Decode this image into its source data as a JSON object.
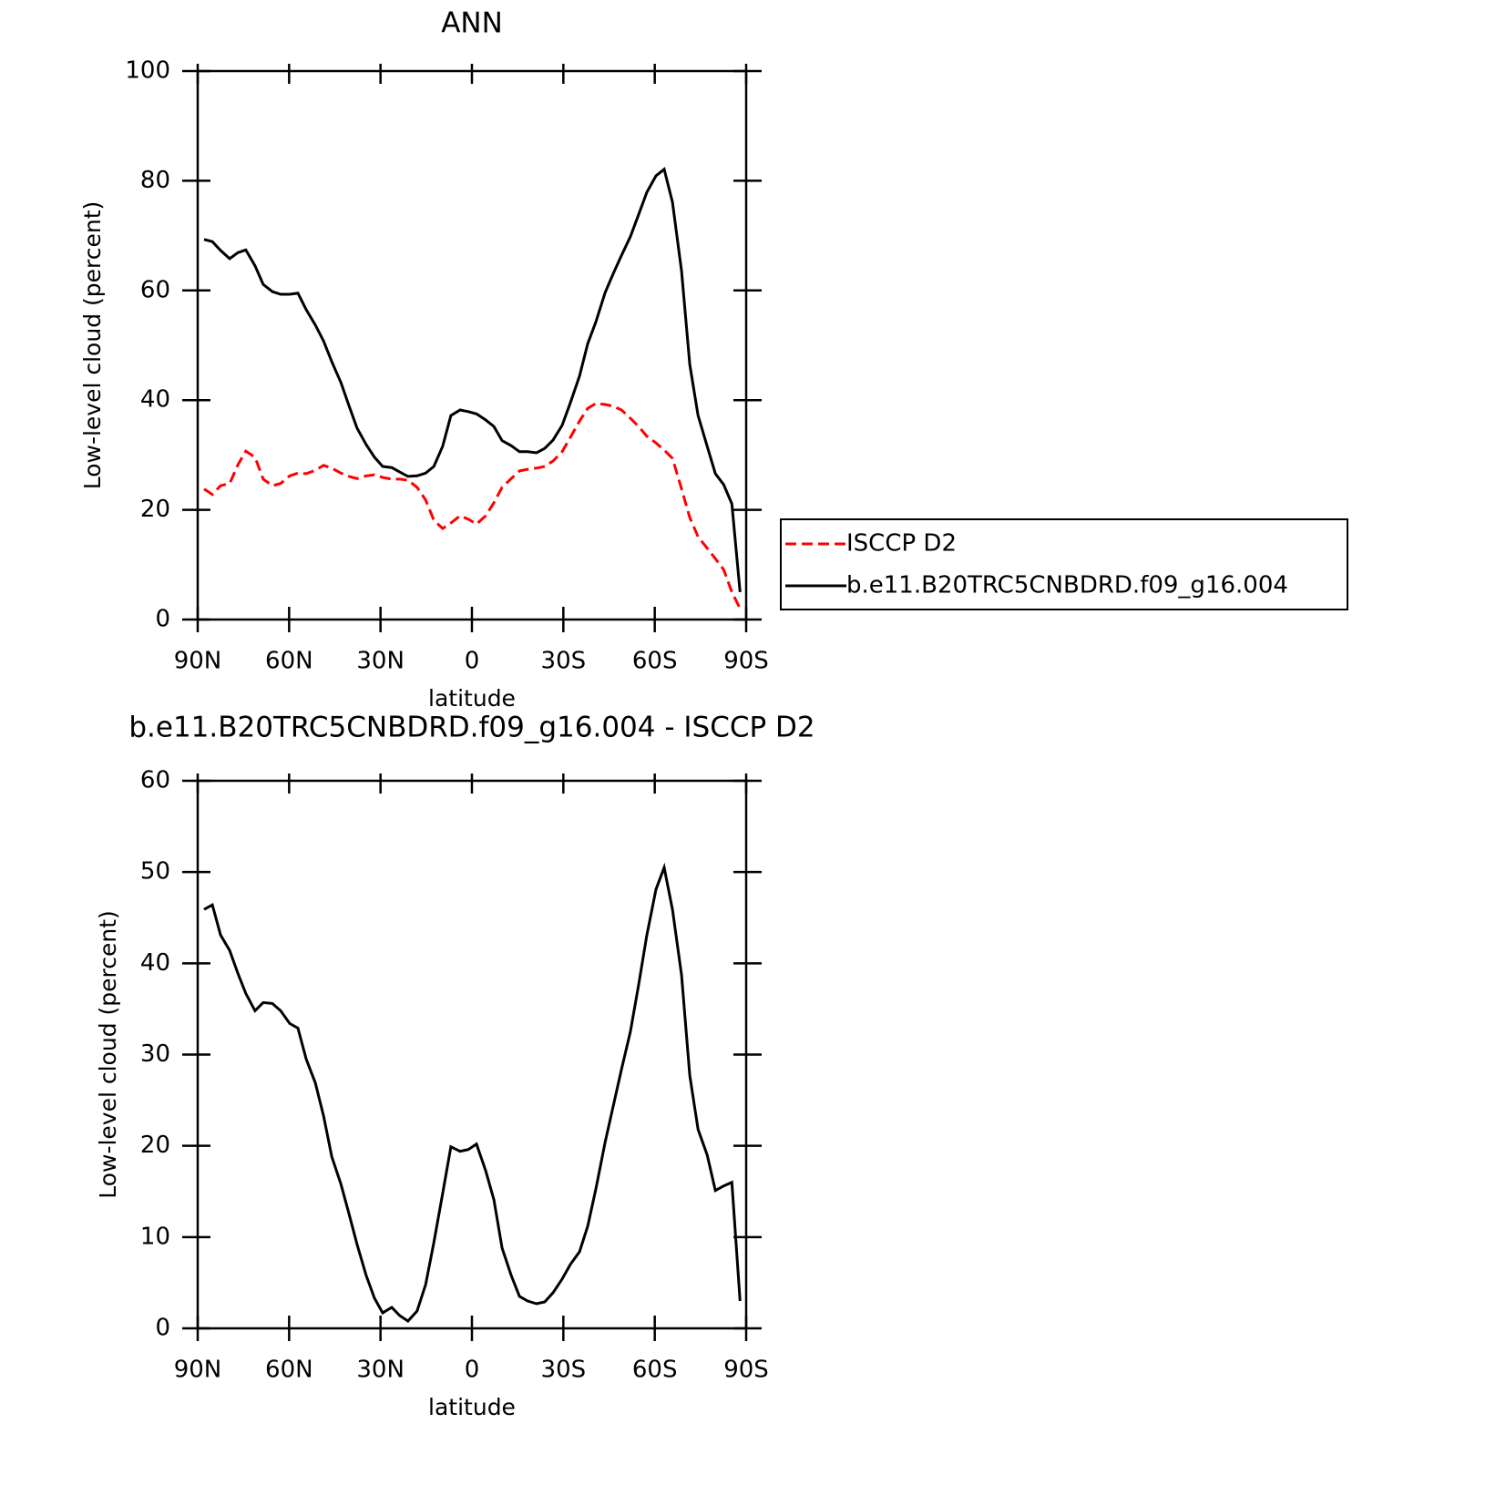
{
  "chart_data": [
    {
      "type": "line",
      "title": "ANN",
      "xlabel": "latitude",
      "ylabel": "Low-level cloud (percent)",
      "x": [
        87.9,
        85.2,
        82.5,
        79.5,
        76.8,
        74.2,
        71.2,
        68.5,
        65.5,
        62.8,
        59.8,
        57.1,
        54.4,
        51.4,
        48.7,
        46.0,
        43.0,
        40.3,
        37.7,
        34.7,
        32.0,
        29.3,
        26.3,
        23.7,
        21.0,
        18.0,
        15.2,
        12.5,
        9.6,
        6.9,
        3.9,
        1.2,
        -1.5,
        -4.5,
        -7.2,
        -9.9,
        -12.9,
        -15.6,
        -18.3,
        -21.2,
        -23.9,
        -26.6,
        -29.6,
        -32.3,
        -35.3,
        -38.0,
        -40.7,
        -43.7,
        -46.4,
        -49.1,
        -52.0,
        -54.7,
        -57.4,
        -60.4,
        -63.1,
        -65.8,
        -68.8,
        -71.5,
        -74.2,
        -77.2,
        -79.9,
        -82.6,
        -85.3,
        -88.0
      ],
      "series": [
        {
          "name": "ISCCP D2",
          "color": "#ff0000",
          "dashed": true,
          "values": [
            23.8,
            22.8,
            24.4,
            24.8,
            28.2,
            30.7,
            29.6,
            25.6,
            24.4,
            24.8,
            26.2,
            26.7,
            26.6,
            27.2,
            28.1,
            27.6,
            26.7,
            26.1,
            25.7,
            26.2,
            26.4,
            25.9,
            25.6,
            25.6,
            25.4,
            24.1,
            21.8,
            18.1,
            16.6,
            17.6,
            18.9,
            18.3,
            17.4,
            18.9,
            21.3,
            24.1,
            25.7,
            27.1,
            27.4,
            27.6,
            27.9,
            28.9,
            30.6,
            33.2,
            36.2,
            38.5,
            39.4,
            39.2,
            38.9,
            38.2,
            36.7,
            35.2,
            33.4,
            32.2,
            30.9,
            29.4,
            23.8,
            18.6,
            15.1,
            13.0,
            11.1,
            9.1,
            5.0,
            2.0
          ]
        },
        {
          "name": "b.e11.B20TRC5CNBDRD.f09_g16.004",
          "color": "#000000",
          "dashed": false,
          "values": [
            69.3,
            68.9,
            67.3,
            65.8,
            66.9,
            67.4,
            64.5,
            61.1,
            59.8,
            59.3,
            59.3,
            59.5,
            56.5,
            53.7,
            50.8,
            47.0,
            43.2,
            38.9,
            34.9,
            31.9,
            29.6,
            27.9,
            27.7,
            26.9,
            26.1,
            26.2,
            26.7,
            27.9,
            31.6,
            37.2,
            38.2,
            37.9,
            37.5,
            36.4,
            35.2,
            32.6,
            31.7,
            30.6,
            30.6,
            30.4,
            31.2,
            32.7,
            35.4,
            39.5,
            44.4,
            50.3,
            54.3,
            59.6,
            63.1,
            66.4,
            69.8,
            73.8,
            77.9,
            80.9,
            82.1,
            76.1,
            63.5,
            46.5,
            37.2,
            31.6,
            26.6,
            24.6,
            21.1,
            5.0
          ]
        }
      ],
      "xlim": [
        90,
        -90
      ],
      "xticks": [
        {
          "value": 90,
          "label": "90N"
        },
        {
          "value": 60,
          "label": "60N"
        },
        {
          "value": 30,
          "label": "30N"
        },
        0,
        {
          "value": -30,
          "label": "30S"
        },
        {
          "value": -60,
          "label": "60S"
        },
        {
          "value": -90,
          "label": "90S"
        }
      ],
      "ylim": [
        0,
        100
      ],
      "yticks": [
        0,
        20,
        40,
        60,
        80,
        100
      ],
      "grid": false,
      "legend": "right"
    },
    {
      "type": "line",
      "title": "b.e11.B20TRC5CNBDRD.f09_g16.004 - ISCCP D2",
      "xlabel": "latitude",
      "ylabel": "Low-level cloud (percent)",
      "x": [
        87.9,
        85.2,
        82.5,
        79.5,
        76.8,
        74.2,
        71.2,
        68.5,
        65.5,
        62.8,
        59.8,
        57.1,
        54.4,
        51.4,
        48.7,
        46.0,
        43.0,
        40.3,
        37.7,
        34.7,
        32.0,
        29.3,
        26.3,
        23.7,
        21.0,
        18.0,
        15.2,
        12.5,
        9.6,
        6.9,
        3.9,
        1.2,
        -1.5,
        -4.5,
        -7.2,
        -9.9,
        -12.9,
        -15.6,
        -18.3,
        -21.2,
        -23.9,
        -26.6,
        -29.6,
        -32.3,
        -35.3,
        -38.0,
        -40.7,
        -43.7,
        -46.4,
        -49.1,
        -52.0,
        -54.7,
        -57.4,
        -60.4,
        -63.1,
        -65.8,
        -68.8,
        -71.5,
        -74.2,
        -77.2,
        -79.9,
        -82.6,
        -85.3,
        -88.0
      ],
      "values": [
        45.9,
        46.4,
        43.1,
        41.4,
        38.9,
        36.7,
        34.8,
        35.7,
        35.6,
        34.8,
        33.4,
        32.9,
        29.5,
        26.9,
        23.3,
        18.8,
        15.8,
        12.5,
        9.2,
        5.8,
        3.3,
        1.7,
        2.3,
        1.4,
        0.8,
        1.9,
        4.8,
        9.4,
        14.8,
        19.9,
        19.4,
        19.6,
        20.2,
        17.3,
        14.1,
        8.8,
        5.8,
        3.5,
        3.0,
        2.7,
        2.9,
        3.9,
        5.4,
        7.0,
        8.4,
        11.2,
        15.3,
        20.4,
        24.4,
        28.4,
        32.5,
        37.6,
        43.1,
        48.1,
        50.5,
        45.9,
        38.7,
        27.7,
        21.8,
        19.0,
        15.1,
        15.6,
        16.0,
        3.0
      ],
      "color": "#000000",
      "xlim": [
        90,
        -90
      ],
      "xticks": [
        {
          "value": 90,
          "label": "90N"
        },
        {
          "value": 60,
          "label": "60N"
        },
        {
          "value": 30,
          "label": "30N"
        },
        0,
        {
          "value": -30,
          "label": "30S"
        },
        {
          "value": -60,
          "label": "60S"
        },
        {
          "value": -90,
          "label": "90S"
        }
      ],
      "ylim": [
        0,
        60
      ],
      "yticks": [
        0,
        10,
        20,
        30,
        40,
        50,
        60
      ],
      "grid": false
    }
  ]
}
